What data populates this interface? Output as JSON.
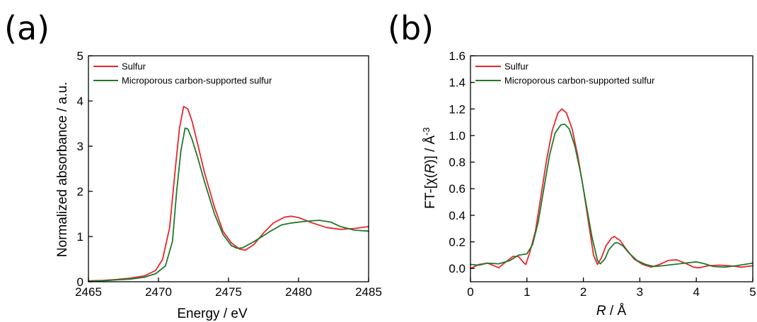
{
  "chart_data": [
    {
      "panel": "(a)",
      "type": "line",
      "xlabel": "Energy / eV",
      "ylabel": "Normalized absorbance / a.u.",
      "xlim": [
        2465,
        2485
      ],
      "ylim": [
        0,
        5
      ],
      "xticks": [
        2465,
        2470,
        2475,
        2480,
        2485
      ],
      "yticks": [
        0,
        1,
        2,
        3,
        4,
        5
      ],
      "legend_position": "top-left",
      "grid": false,
      "series": [
        {
          "name": "Sulfur",
          "color": "#e8262b",
          "points": [
            [
              2465,
              0.02
            ],
            [
              2466,
              0.03
            ],
            [
              2467,
              0.05
            ],
            [
              2468,
              0.08
            ],
            [
              2469,
              0.13
            ],
            [
              2469.8,
              0.25
            ],
            [
              2470.3,
              0.5
            ],
            [
              2470.8,
              1.2
            ],
            [
              2471.2,
              2.5
            ],
            [
              2471.5,
              3.4
            ],
            [
              2471.8,
              3.88
            ],
            [
              2472.1,
              3.82
            ],
            [
              2472.4,
              3.55
            ],
            [
              2472.8,
              3.05
            ],
            [
              2473.3,
              2.4
            ],
            [
              2474,
              1.65
            ],
            [
              2474.6,
              1.12
            ],
            [
              2475.2,
              0.86
            ],
            [
              2475.8,
              0.72
            ],
            [
              2476.2,
              0.7
            ],
            [
              2476.8,
              0.82
            ],
            [
              2477.5,
              1.08
            ],
            [
              2478.2,
              1.3
            ],
            [
              2479,
              1.43
            ],
            [
              2479.5,
              1.45
            ],
            [
              2480,
              1.42
            ],
            [
              2481,
              1.3
            ],
            [
              2482,
              1.2
            ],
            [
              2483,
              1.16
            ],
            [
              2484,
              1.18
            ],
            [
              2485,
              1.22
            ]
          ]
        },
        {
          "name": "Microporous carbon-supported sulfur",
          "color": "#1e7a2c",
          "points": [
            [
              2465,
              0.01
            ],
            [
              2466,
              0.02
            ],
            [
              2467,
              0.04
            ],
            [
              2468,
              0.06
            ],
            [
              2469,
              0.1
            ],
            [
              2469.8,
              0.18
            ],
            [
              2470.5,
              0.35
            ],
            [
              2471,
              0.9
            ],
            [
              2471.3,
              2
            ],
            [
              2471.6,
              2.9
            ],
            [
              2471.9,
              3.4
            ],
            [
              2472.1,
              3.38
            ],
            [
              2472.4,
              3.15
            ],
            [
              2472.8,
              2.75
            ],
            [
              2473.3,
              2.2
            ],
            [
              2474,
              1.5
            ],
            [
              2474.6,
              1.05
            ],
            [
              2475.2,
              0.8
            ],
            [
              2475.6,
              0.74
            ],
            [
              2476,
              0.75
            ],
            [
              2476.6,
              0.85
            ],
            [
              2477.3,
              0.98
            ],
            [
              2478,
              1.12
            ],
            [
              2478.8,
              1.26
            ],
            [
              2479.5,
              1.3
            ],
            [
              2480.3,
              1.33
            ],
            [
              2481,
              1.35
            ],
            [
              2481.5,
              1.36
            ],
            [
              2482.3,
              1.32
            ],
            [
              2483,
              1.22
            ],
            [
              2484,
              1.14
            ],
            [
              2485,
              1.12
            ]
          ]
        }
      ]
    },
    {
      "panel": "(b)",
      "type": "line",
      "xlabel_italic": "R",
      "xlabel_rest": " / Å",
      "ylabel_pre": "FT-[χ(",
      "ylabel_italic": "R",
      "ylabel_mid": ")] / Å",
      "ylabel_sup": "-3",
      "xlim": [
        0,
        5
      ],
      "ylim": [
        -0.1,
        1.6
      ],
      "xticks": [
        0,
        1,
        2,
        3,
        4,
        5
      ],
      "yticks": [
        "0.0",
        "0.2",
        "0.4",
        "0.6",
        "0.8",
        "1.0",
        "1.2",
        "1.4",
        "1.6"
      ],
      "legend_position": "top-left",
      "grid": false,
      "series": [
        {
          "name": "Sulfur",
          "color": "#e8262b",
          "points": [
            [
              0,
              0
            ],
            [
              0.15,
              0.03
            ],
            [
              0.3,
              0.04
            ],
            [
              0.42,
              0.02
            ],
            [
              0.5,
              0.005
            ],
            [
              0.6,
              0.04
            ],
            [
              0.75,
              0.09
            ],
            [
              0.85,
              0.09
            ],
            [
              0.95,
              0.04
            ],
            [
              0.98,
              0.03
            ],
            [
              1.05,
              0.12
            ],
            [
              1.15,
              0.28
            ],
            [
              1.25,
              0.55
            ],
            [
              1.35,
              0.82
            ],
            [
              1.45,
              1.04
            ],
            [
              1.55,
              1.17
            ],
            [
              1.62,
              1.2
            ],
            [
              1.7,
              1.17
            ],
            [
              1.8,
              1.05
            ],
            [
              1.9,
              0.85
            ],
            [
              2,
              0.6
            ],
            [
              2.1,
              0.32
            ],
            [
              2.18,
              0.1
            ],
            [
              2.25,
              0.03
            ],
            [
              2.32,
              0.08
            ],
            [
              2.4,
              0.17
            ],
            [
              2.5,
              0.23
            ],
            [
              2.55,
              0.24
            ],
            [
              2.65,
              0.21
            ],
            [
              2.75,
              0.15
            ],
            [
              2.9,
              0.07
            ],
            [
              3.05,
              0.03
            ],
            [
              3.2,
              0.01
            ],
            [
              3.35,
              0.03
            ],
            [
              3.5,
              0.06
            ],
            [
              3.65,
              0.065
            ],
            [
              3.8,
              0.04
            ],
            [
              3.95,
              0.01
            ],
            [
              4.05,
              0.005
            ],
            [
              4.2,
              0.02
            ],
            [
              4.4,
              0.025
            ],
            [
              4.6,
              0.02
            ],
            [
              4.8,
              0.01
            ],
            [
              5,
              0.02
            ]
          ]
        },
        {
          "name": "Microporous carbon-supported sulfur",
          "color": "#1e7a2c",
          "points": [
            [
              0,
              0.03
            ],
            [
              0.15,
              0.025
            ],
            [
              0.3,
              0.04
            ],
            [
              0.5,
              0.035
            ],
            [
              0.7,
              0.06
            ],
            [
              0.85,
              0.1
            ],
            [
              1,
              0.11
            ],
            [
              1.1,
              0.18
            ],
            [
              1.2,
              0.35
            ],
            [
              1.3,
              0.6
            ],
            [
              1.4,
              0.85
            ],
            [
              1.5,
              1.02
            ],
            [
              1.6,
              1.08
            ],
            [
              1.67,
              1.085
            ],
            [
              1.75,
              1.05
            ],
            [
              1.85,
              0.92
            ],
            [
              1.95,
              0.72
            ],
            [
              2.05,
              0.48
            ],
            [
              2.15,
              0.24
            ],
            [
              2.25,
              0.06
            ],
            [
              2.3,
              0.035
            ],
            [
              2.38,
              0.07
            ],
            [
              2.45,
              0.14
            ],
            [
              2.55,
              0.19
            ],
            [
              2.6,
              0.195
            ],
            [
              2.7,
              0.17
            ],
            [
              2.8,
              0.12
            ],
            [
              2.95,
              0.06
            ],
            [
              3.1,
              0.03
            ],
            [
              3.25,
              0.015
            ],
            [
              3.4,
              0.02
            ],
            [
              3.6,
              0.03
            ],
            [
              3.8,
              0.04
            ],
            [
              4,
              0.05
            ],
            [
              4.15,
              0.035
            ],
            [
              4.3,
              0.015
            ],
            [
              4.5,
              0.01
            ],
            [
              4.7,
              0.02
            ],
            [
              5,
              0.04
            ]
          ]
        }
      ]
    }
  ]
}
